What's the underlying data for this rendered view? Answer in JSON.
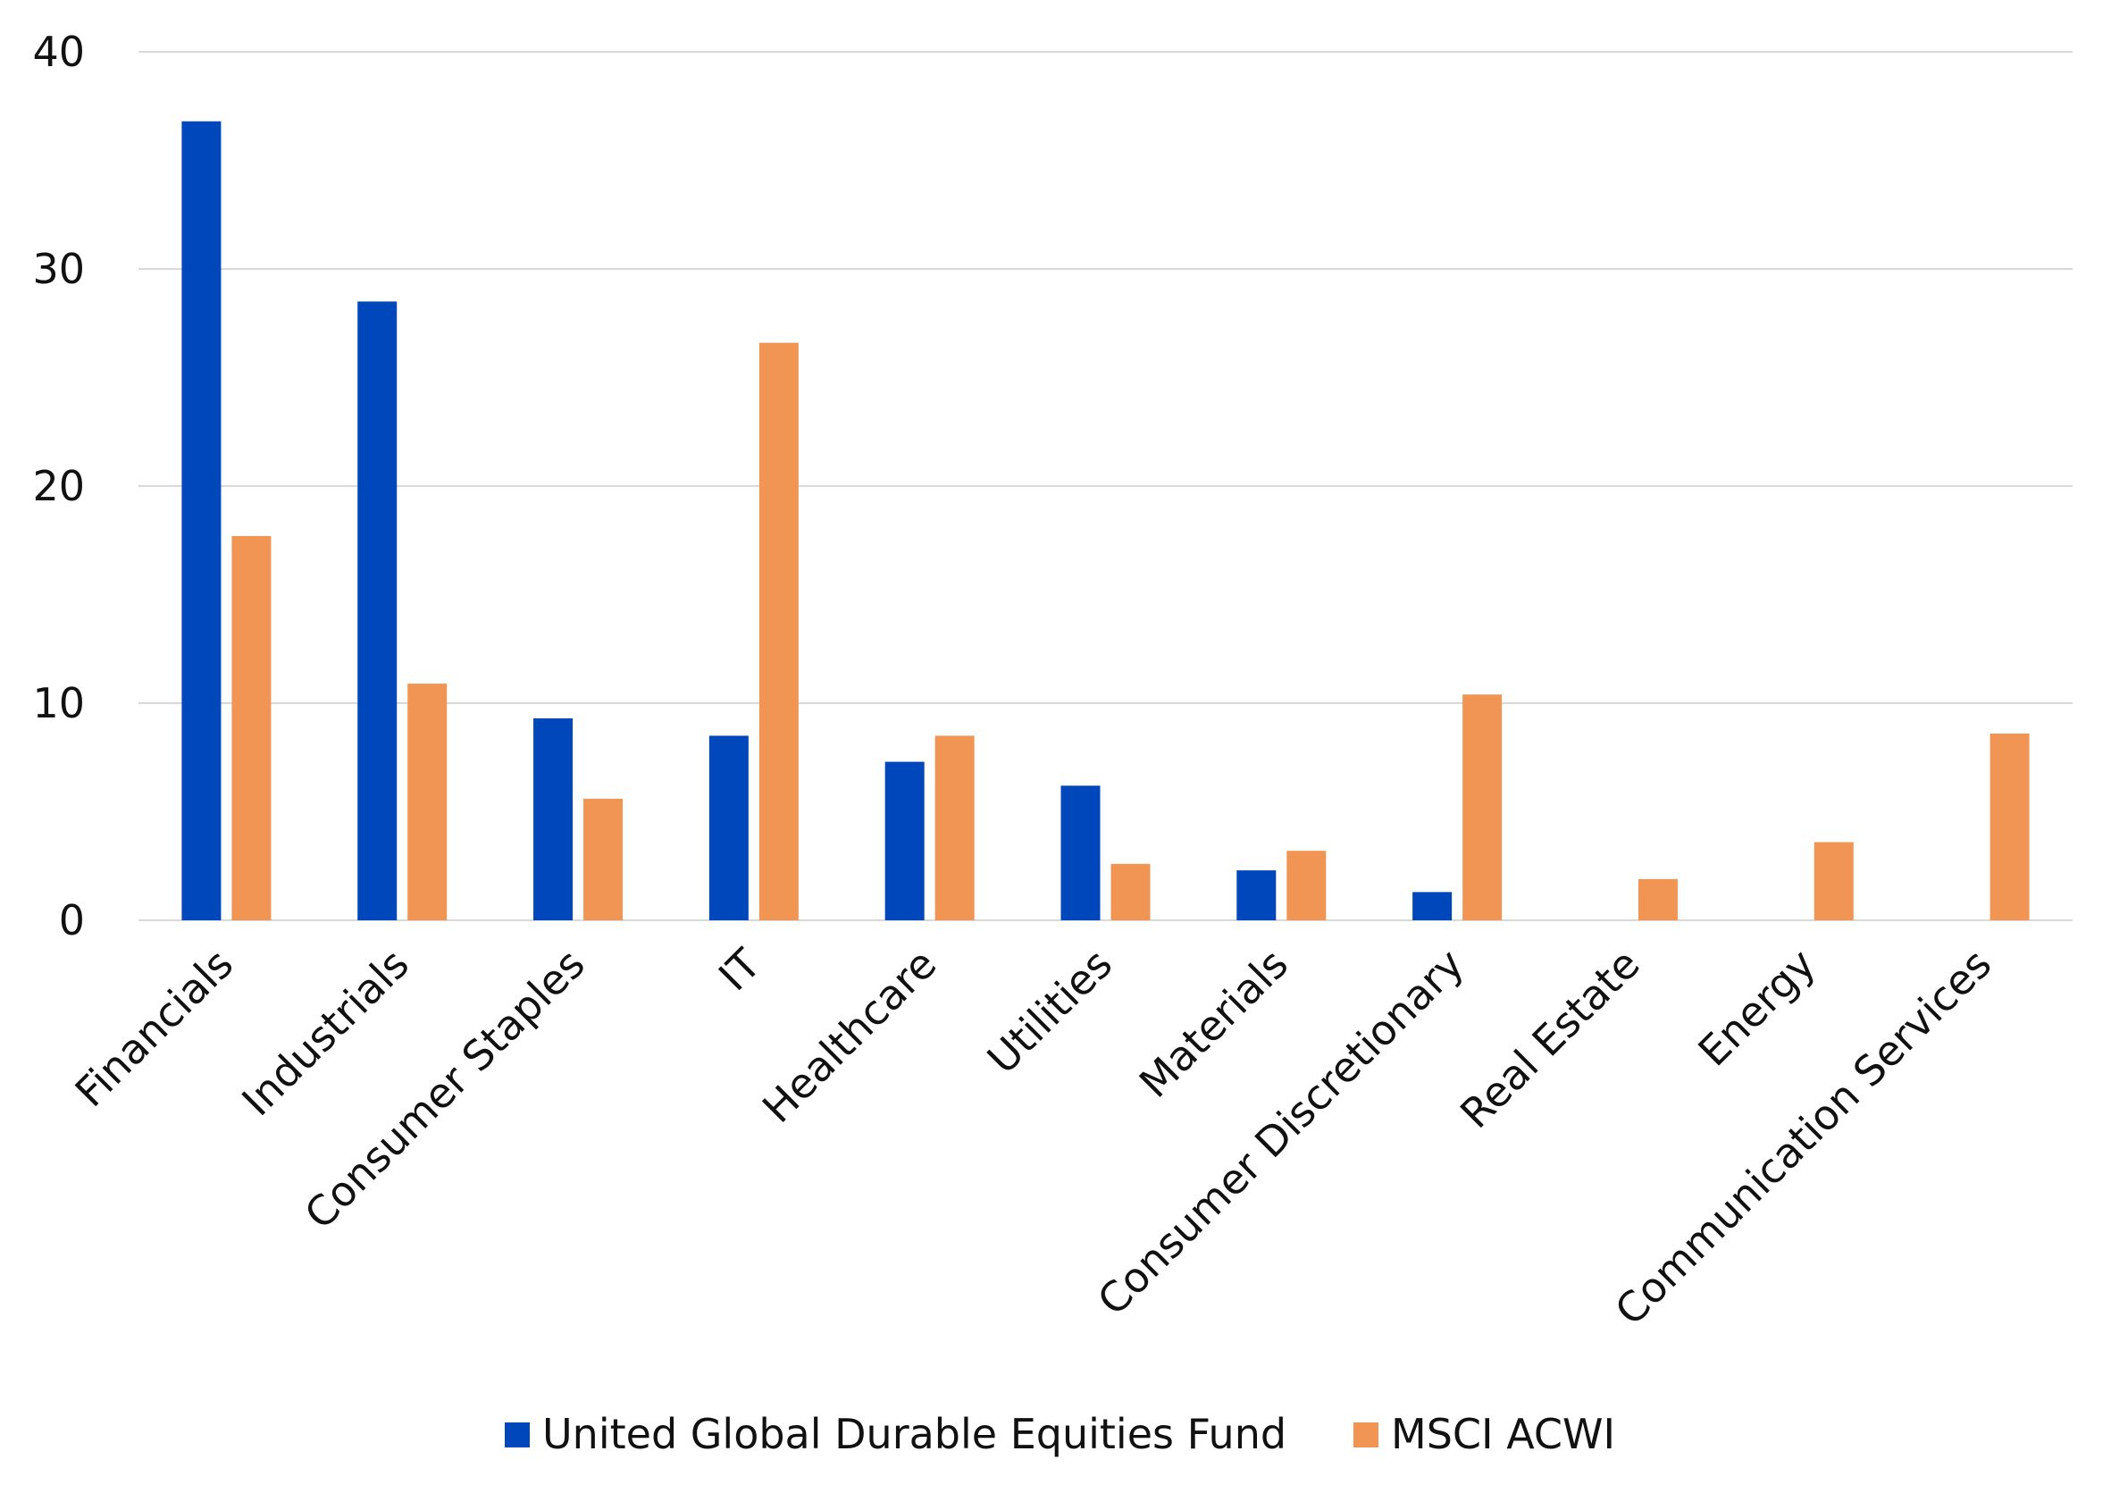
{
  "chart_data": {
    "type": "bar",
    "title": "",
    "xlabel": "",
    "ylabel": "",
    "ylim": [
      0,
      40
    ],
    "yticks": [
      0,
      10,
      20,
      30,
      40
    ],
    "grid": true,
    "legend_position": "bottom",
    "categories": [
      "Financials",
      "Industrials",
      "Consumer Staples",
      "IT",
      "Healthcare",
      "Utilities",
      "Materials",
      "Consumer Discretionary",
      "Real Estate",
      "Energy",
      "Communication Services"
    ],
    "series": [
      {
        "name": "United Global Durable Equities Fund",
        "color": "#0047BB",
        "values": [
          36.8,
          28.5,
          9.3,
          8.5,
          7.3,
          6.2,
          2.3,
          1.3,
          0,
          0,
          0
        ]
      },
      {
        "name": "MSCI ACWI",
        "color": "#F09553",
        "values": [
          17.7,
          10.9,
          5.6,
          26.6,
          8.5,
          2.6,
          3.2,
          10.4,
          1.9,
          3.6,
          8.6
        ]
      }
    ]
  }
}
